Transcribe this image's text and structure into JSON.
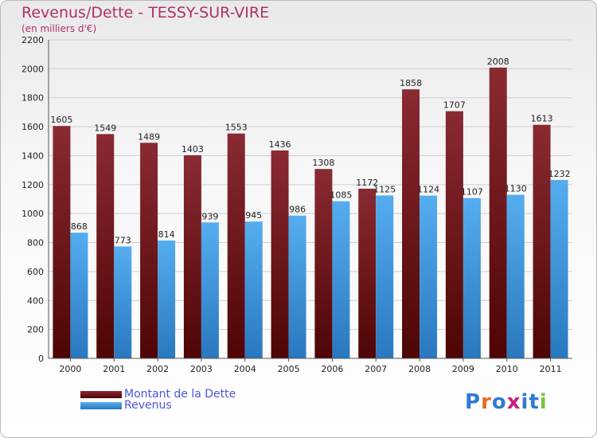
{
  "header": {
    "title": "Revenus/Dette - TESSY-SUR-VIRE",
    "subtitle": "(en milliers d'€)"
  },
  "legend": [
    {
      "label": "Montant de la Dette",
      "color": "#6e0f12"
    },
    {
      "label": "Revenus",
      "color": "#3d98e0"
    }
  ],
  "logo": {
    "letters": [
      "P",
      "r",
      "o",
      "x",
      "i",
      "t",
      "i"
    ],
    "colors": [
      "#2e7bd3",
      "#e66b1e",
      "#2e7bd3",
      "#c81e7a",
      "#2e7bd3",
      "#2e7bd3",
      "#7cc242"
    ]
  },
  "chart_data": {
    "type": "bar",
    "categories": [
      "2000",
      "2001",
      "2002",
      "2003",
      "2004",
      "2005",
      "2006",
      "2007",
      "2008",
      "2009",
      "2010",
      "2011"
    ],
    "series": [
      {
        "name": "Montant de la Dette",
        "values": [
          1605,
          1549,
          1489,
          1403,
          1553,
          1436,
          1308,
          1172,
          1858,
          1707,
          2008,
          1613
        ]
      },
      {
        "name": "Revenus",
        "values": [
          868,
          773,
          814,
          939,
          945,
          986,
          1085,
          1125,
          1124,
          1107,
          1130,
          1232
        ]
      }
    ],
    "ylim": [
      0,
      2200
    ],
    "yticks": [
      0,
      200,
      400,
      600,
      800,
      1000,
      1200,
      1400,
      1600,
      1800,
      2000,
      2200
    ],
    "grid": true,
    "legend_position": "bottom-left"
  }
}
